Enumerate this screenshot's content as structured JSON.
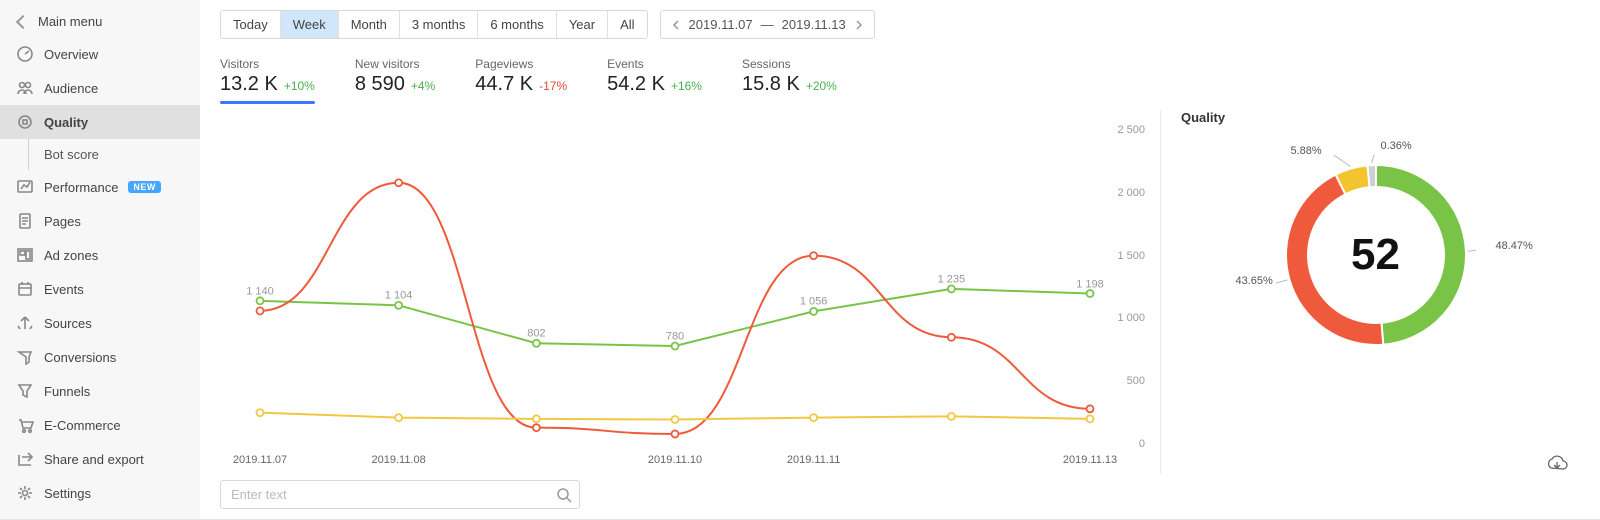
{
  "sidebar": {
    "main_menu": "Main menu",
    "items": [
      {
        "id": "overview",
        "label": "Overview"
      },
      {
        "id": "audience",
        "label": "Audience"
      },
      {
        "id": "quality",
        "label": "Quality",
        "active": true
      },
      {
        "id": "botscore",
        "label": "Bot score",
        "sub": true
      },
      {
        "id": "performance",
        "label": "Performance",
        "badge": "NEW"
      },
      {
        "id": "pages",
        "label": "Pages"
      },
      {
        "id": "adzones",
        "label": "Ad zones"
      },
      {
        "id": "events",
        "label": "Events"
      },
      {
        "id": "sources",
        "label": "Sources"
      },
      {
        "id": "conversions",
        "label": "Conversions"
      },
      {
        "id": "funnels",
        "label": "Funnels"
      },
      {
        "id": "ecommerce",
        "label": "E-Commerce"
      },
      {
        "id": "shareexport",
        "label": "Share and export"
      },
      {
        "id": "settings",
        "label": "Settings"
      }
    ]
  },
  "time_ranges": {
    "options": [
      "Today",
      "Week",
      "Month",
      "3 months",
      "6 months",
      "Year",
      "All"
    ],
    "selected": 1
  },
  "date_range": {
    "from": "2019.11.07",
    "sep": "—",
    "to": "2019.11.13"
  },
  "metrics": [
    {
      "label": "Visitors",
      "value": "13.2 K",
      "delta": "+10%",
      "dir": "up",
      "active": true
    },
    {
      "label": "New visitors",
      "value": "8 590",
      "delta": "+4%",
      "dir": "up"
    },
    {
      "label": "Pageviews",
      "value": "44.7 K",
      "delta": "-17%",
      "dir": "down"
    },
    {
      "label": "Events",
      "value": "54.2 K",
      "delta": "+16%",
      "dir": "up"
    },
    {
      "label": "Sessions",
      "value": "15.8 K",
      "delta": "+20%",
      "dir": "up"
    }
  ],
  "chart": {
    "type": "line",
    "ylim": [
      0,
      2500
    ],
    "ytick_step": 500,
    "ytick_labels": [
      "0",
      "500",
      "1 000",
      "1 500",
      "2 000",
      "2 500"
    ],
    "x_categories": [
      "2019.11.07",
      "2019.11.08",
      "",
      "2019.11.10",
      "2019.11.11",
      "",
      "2019.11.13"
    ],
    "x_positions": [
      0,
      0.167,
      0.333,
      0.5,
      0.667,
      0.833,
      1.0
    ],
    "series": [
      {
        "id": "green",
        "color": "#79c447",
        "stroke_width": 2,
        "marker": "circle",
        "marker_size": 5,
        "values": [
          1140,
          1104,
          802,
          780,
          1056,
          1235,
          1198
        ],
        "point_labels": [
          "1 140",
          "1 104",
          "802",
          "780",
          "1 056",
          "1 235",
          "1 198"
        ]
      },
      {
        "id": "red",
        "color": "#f05a3c",
        "stroke_width": 2,
        "marker": "circle",
        "marker_size": 5,
        "values": [
          1060,
          2080,
          130,
          80,
          1500,
          850,
          280
        ],
        "smooth": true
      },
      {
        "id": "yellow",
        "color": "#f2c744",
        "stroke_width": 2,
        "marker": "circle",
        "marker_size": 5,
        "values": [
          250,
          210,
          200,
          195,
          210,
          220,
          200
        ]
      }
    ],
    "background_color": "#ffffff",
    "label_fontsize": 11
  },
  "quality": {
    "title": "Quality",
    "center_value": "52",
    "slices": [
      {
        "label": "48.47%",
        "value": 48.47,
        "color": "#79c447"
      },
      {
        "label": "43.65%",
        "value": 43.65,
        "color": "#f05a3c"
      },
      {
        "label": "5.88%",
        "value": 5.88,
        "color": "#f4c430"
      },
      {
        "label": "0.36%",
        "value": 0.36,
        "color": "#cfcfcf"
      }
    ],
    "donut_thickness": 22,
    "donut_radius": 90
  },
  "search": {
    "placeholder": "Enter text"
  },
  "colors": {
    "sidebar_bg": "#f7f7f7",
    "range_selected_bg": "#cfe6fb"
  }
}
